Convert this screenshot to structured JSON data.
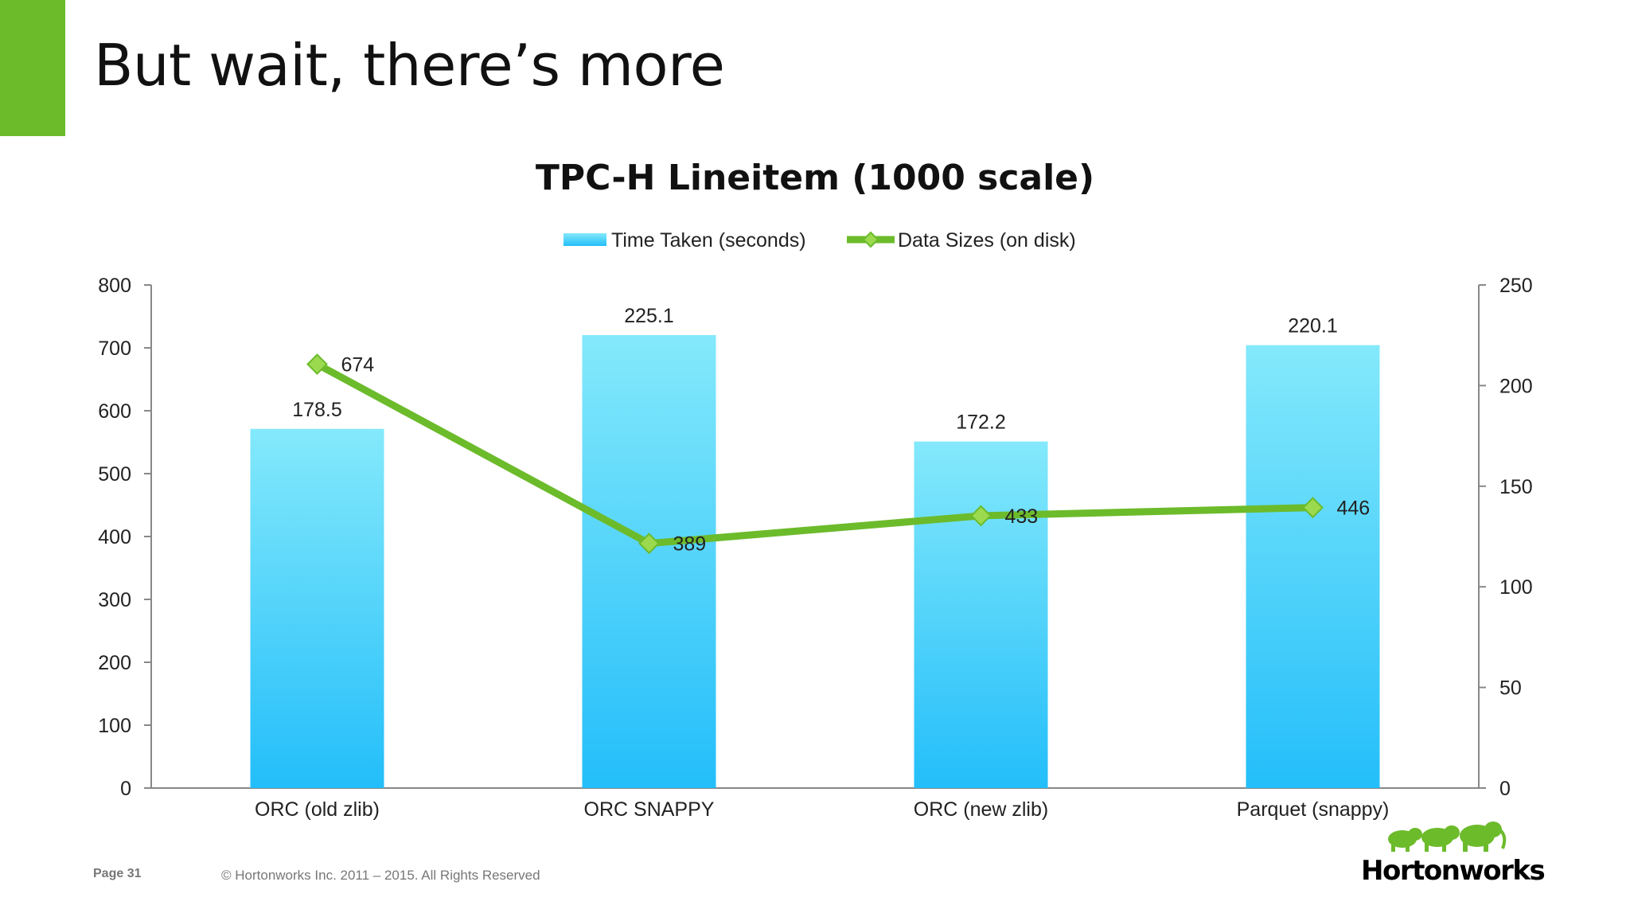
{
  "slide": {
    "title": "But wait, there’s more",
    "accent_color": "#6cbb2b"
  },
  "footer": {
    "page": "Page 31",
    "copyright": "© Hortonworks Inc. 2011 – 2015. All Rights Reserved"
  },
  "logo": {
    "text": "Hortonworks",
    "icon": "elephants-logo-icon"
  },
  "chart_data": {
    "type": "bar",
    "title": "TPC-H Lineitem (1000 scale)",
    "categories": [
      "ORC (old zlib)",
      "ORC SNAPPY",
      "ORC (new zlib)",
      "Parquet (snappy)"
    ],
    "series": [
      {
        "name": "Time Taken (seconds)",
        "type": "bar",
        "axis": "left",
        "values": [
          178.5,
          225.1,
          172.2,
          220.1
        ],
        "labels": [
          "178.5",
          "225.1",
          "172.2",
          "220.1"
        ],
        "color": "#3cc6f7"
      },
      {
        "name": "Data Sizes (on disk)",
        "type": "line",
        "axis": "right",
        "values": [
          674,
          389,
          433,
          446
        ],
        "labels": [
          "674",
          "389",
          "433",
          "446"
        ],
        "color": "#6cbb2b"
      }
    ],
    "y_left": {
      "min": 0,
      "max": 800,
      "ticks": [
        "0",
        "100",
        "200",
        "300",
        "400",
        "500",
        "600",
        "700",
        "800"
      ]
    },
    "y_right": {
      "min": 0,
      "max": 250,
      "ticks": [
        "0",
        "50",
        "100",
        "150",
        "200",
        "250"
      ]
    },
    "legend_position": "top",
    "grid": false
  }
}
